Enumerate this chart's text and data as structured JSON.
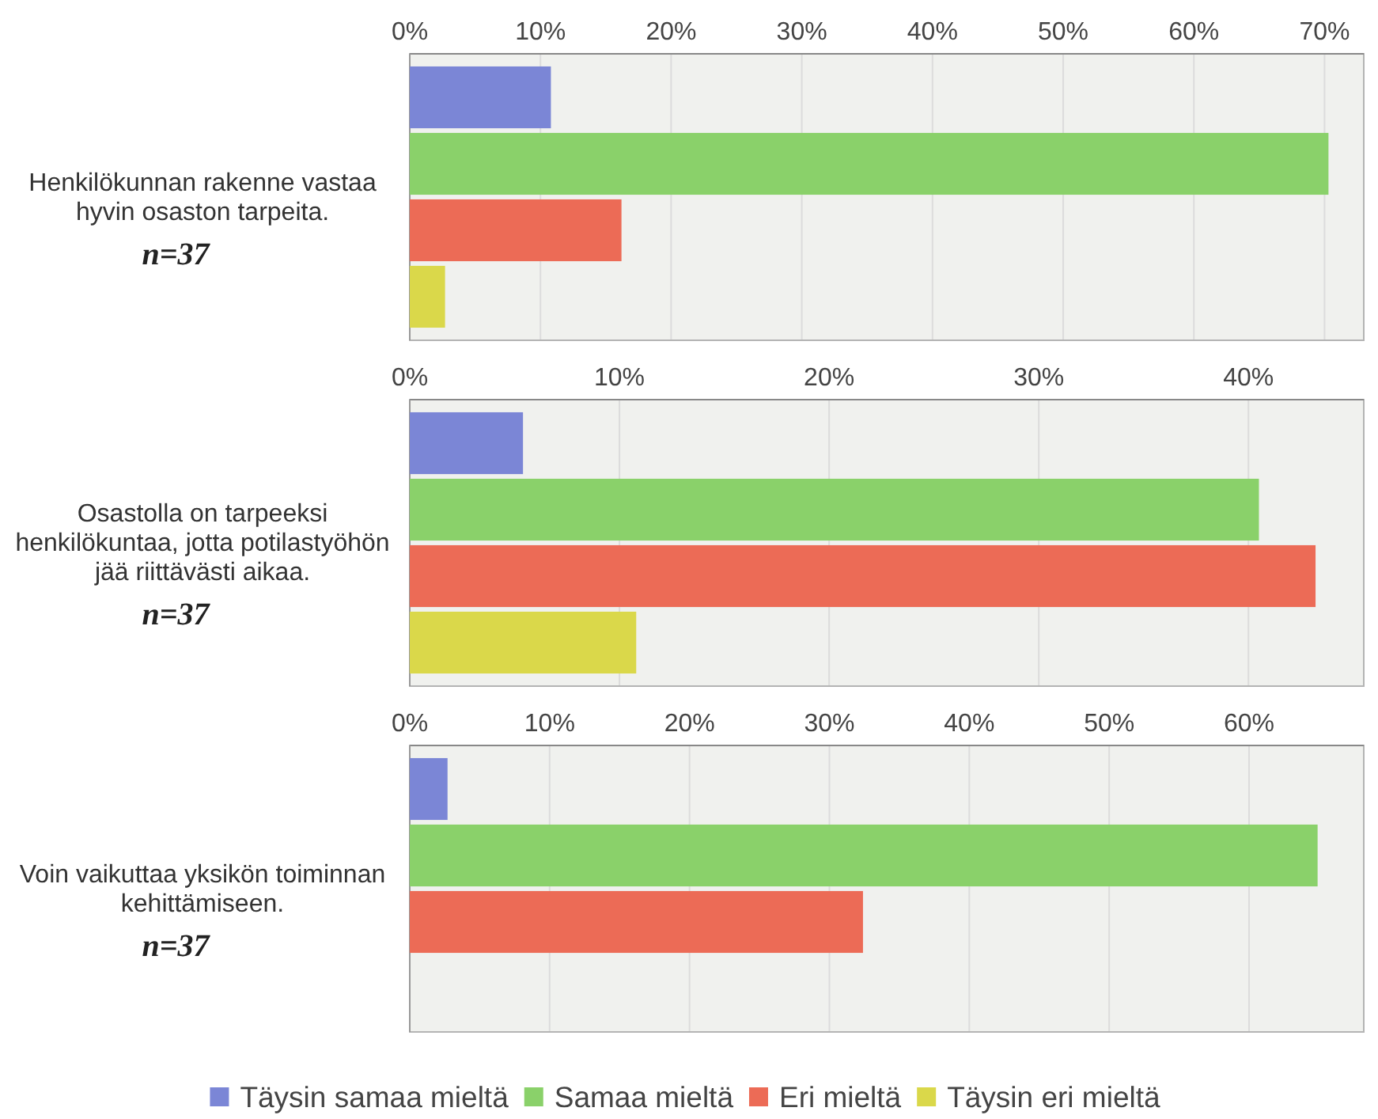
{
  "chart_data": [
    {
      "type": "bar",
      "orientation": "horizontal",
      "stacked": true,
      "ylabel": "Henkilökunnan rakenne vastaa hyvin osaston tarpeita.",
      "categories": [
        null,
        null,
        null,
        null
      ],
      "series": [
        {
          "color": "#7b86d6",
          "values": [
            10.8,
            null,
            null,
            null
          ]
        },
        {
          "color": "#8ad16a",
          "values": [
            null,
            70.3,
            null,
            null
          ]
        },
        {
          "color": "#ec6b56",
          "values": [
            null,
            null,
            16.2,
            null
          ]
        },
        {
          "color": "#dad84a",
          "values": [
            null,
            null,
            null,
            2.7
          ]
        }
      ],
      "xlim": [
        0,
        73
      ],
      "xticks": [
        {
          "value": 0,
          "label": "0%"
        },
        {
          "value": 10,
          "label": "10%"
        },
        {
          "value": 20,
          "label": "20%"
        },
        {
          "value": 30,
          "label": "30%"
        },
        {
          "value": 40,
          "label": "40%"
        },
        {
          "value": 50,
          "label": "50%"
        },
        {
          "value": 60,
          "label": "60%"
        },
        {
          "value": 70,
          "label": "70%"
        }
      ],
      "grid": "x",
      "annotations": [
        "n=37"
      ]
    },
    {
      "type": "bar",
      "orientation": "horizontal",
      "stacked": true,
      "ylabel": "Osastolla on tarpeeksi henkilökuntaa, jotta potilastyöhön jää riittävästi aikaa.",
      "categories": [
        null,
        null,
        null,
        null
      ],
      "series": [
        {
          "color": "#7b86d6",
          "values": [
            5.4,
            null,
            null,
            null
          ]
        },
        {
          "color": "#8ad16a",
          "values": [
            null,
            40.5,
            null,
            null
          ]
        },
        {
          "color": "#ec6b56",
          "values": [
            null,
            null,
            43.2,
            null
          ]
        },
        {
          "color": "#dad84a",
          "values": [
            null,
            null,
            null,
            10.8
          ]
        }
      ],
      "xlim": [
        0,
        45.5
      ],
      "xticks": [
        {
          "value": 0,
          "label": "0%"
        },
        {
          "value": 10,
          "label": "10%"
        },
        {
          "value": 20,
          "label": "20%"
        },
        {
          "value": 30,
          "label": "30%"
        },
        {
          "value": 40,
          "label": "40%"
        }
      ],
      "grid": "x",
      "annotations": [
        "n=37"
      ]
    },
    {
      "type": "bar",
      "orientation": "horizontal",
      "stacked": true,
      "ylabel": "Voin vaikuttaa yksikön toiminnan kehittämiseen.",
      "categories": [
        null,
        null,
        null,
        null
      ],
      "series": [
        {
          "name": "Täysin samaa mieltä",
          "color": "#7b86d6",
          "values": [
            2.7,
            null,
            null,
            null
          ]
        },
        {
          "name": "Samaa mieltä",
          "color": "#8ad16a",
          "values": [
            null,
            64.9,
            null,
            null
          ]
        },
        {
          "name": "Eri mieltä",
          "color": "#ec6b56",
          "values": [
            null,
            null,
            32.4,
            null
          ]
        },
        {
          "name": "Täysin eri mieltä",
          "color": "#dad84a",
          "values": [
            null,
            null,
            null,
            null
          ]
        }
      ],
      "xlim": [
        0,
        68.2
      ],
      "xticks": [
        {
          "value": 0,
          "label": "0%"
        },
        {
          "value": 10,
          "label": "10%"
        },
        {
          "value": 20,
          "label": "20%"
        },
        {
          "value": 30,
          "label": "30%"
        },
        {
          "value": 40,
          "label": "40%"
        },
        {
          "value": 50,
          "label": "50%"
        },
        {
          "value": 60,
          "label": "60%"
        }
      ],
      "grid": "x",
      "annotations": [
        "n=37"
      ],
      "legend": "bottom"
    }
  ]
}
